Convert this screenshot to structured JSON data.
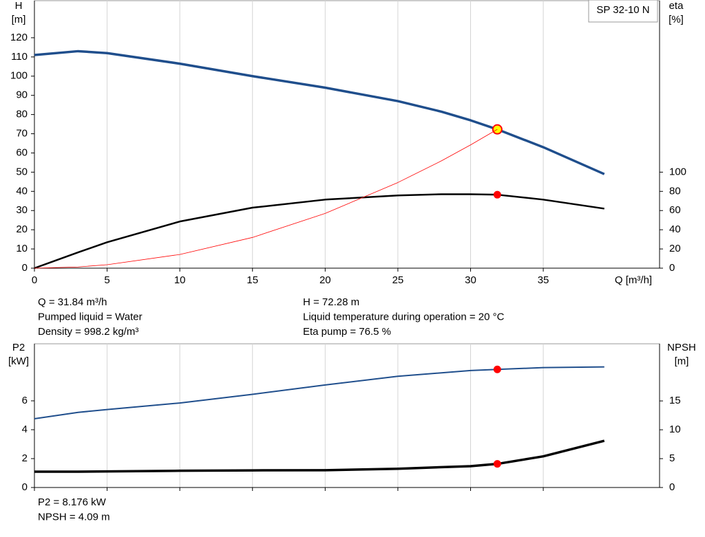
{
  "chart_data": [
    {
      "type": "line",
      "model": "SP 32-10 N",
      "ylabel": "H",
      "yunit": "[m]",
      "y2label": "eta",
      "y2unit": "[%]",
      "xlabel": "Q [m³/h]",
      "x": [
        0,
        3,
        5,
        10,
        15,
        20,
        25,
        28,
        30,
        31.84,
        35,
        39.2
      ],
      "xlim": [
        0,
        43
      ],
      "xticks": [
        0,
        5,
        10,
        15,
        20,
        25,
        30,
        35
      ],
      "ylim": [
        0,
        139.3
      ],
      "yticks": [
        0,
        10,
        20,
        30,
        40,
        50,
        60,
        70,
        80,
        90,
        100,
        110,
        120
      ],
      "y2lim": [
        0,
        278.6
      ],
      "y2ticks": [
        0,
        20,
        40,
        60,
        80,
        100
      ],
      "grid": true,
      "operating_q": 31.84,
      "series": [
        {
          "name": "H",
          "color": "#1f4e8c",
          "marker_color": "#ffff00",
          "values": [
            111,
            113,
            112,
            106.5,
            100,
            94,
            87,
            81.5,
            77,
            72.28,
            63,
            49
          ]
        },
        {
          "name": "eta",
          "color": "#000000",
          "axis": "y2",
          "marker_color": "#ff0000",
          "values": [
            0,
            16.4,
            27,
            48.6,
            63,
            71.4,
            75.7,
            77,
            77,
            76.5,
            71.4,
            62
          ]
        },
        {
          "name": "system",
          "color": "#ff0000",
          "values": [
            0,
            0.64,
            1.78,
            7.13,
            16.0,
            28.5,
            44.6,
            55.9,
            64.2,
            72.28,
            null,
            null
          ]
        }
      ],
      "info": [
        "Q = 31.84 m³/h",
        "Pumped liquid = Water",
        "Density = 998.2 kg/m³",
        "H = 72.28 m",
        "Liquid temperature during operation = 20 °C",
        "Eta pump = 76.5 %"
      ]
    },
    {
      "type": "line",
      "ylabel": "P2",
      "yunit": "[kW]",
      "y2label": "NPSH",
      "y2unit": "[m]",
      "x": [
        0,
        3,
        5,
        10,
        15,
        20,
        25,
        30,
        31.84,
        35,
        39.2
      ],
      "xlim": [
        0,
        43
      ],
      "xticks": [
        0,
        5,
        10,
        15,
        20,
        25,
        30,
        35
      ],
      "ylim": [
        0,
        9.95
      ],
      "yticks": [
        0,
        2,
        4,
        6
      ],
      "y2lim": [
        0,
        24.9
      ],
      "y2ticks": [
        0,
        5,
        10,
        15
      ],
      "grid": true,
      "operating_q": 31.84,
      "series": [
        {
          "name": "P2",
          "color": "#1f4e8c",
          "marker_color": "#ff0000",
          "values": [
            4.76,
            5.2,
            5.4,
            5.85,
            6.45,
            7.1,
            7.7,
            8.1,
            8.176,
            8.3,
            8.35
          ]
        },
        {
          "name": "NPSH",
          "color": "#000000",
          "axis": "y2",
          "marker_color": "#ff0000",
          "values": [
            2.74,
            2.74,
            2.78,
            2.9,
            2.97,
            3.0,
            3.25,
            3.7,
            4.09,
            5.4,
            8.1
          ]
        }
      ],
      "info": [
        "P2 = 8.176 kW",
        "NPSH = 4.09 m"
      ]
    }
  ]
}
